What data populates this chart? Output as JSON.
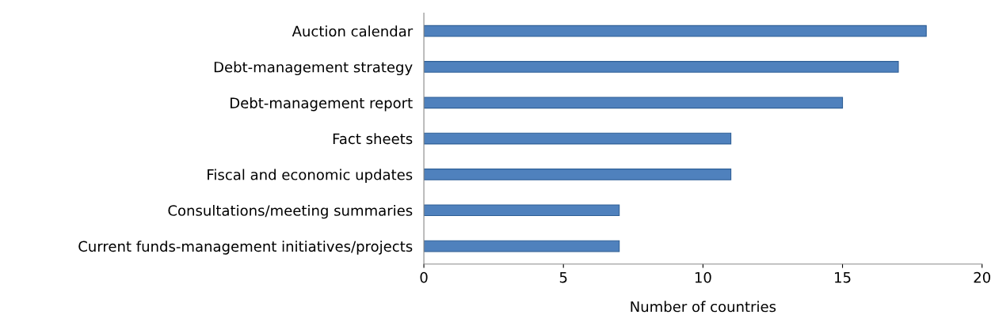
{
  "chart_data": {
    "type": "bar",
    "orientation": "horizontal",
    "xlabel": "Number of countries",
    "categories": [
      "Auction calendar",
      "Debt-management strategy",
      "Debt-management report",
      "Fact sheets",
      "Fiscal and economic updates",
      "Consultations/meeting summaries",
      "Current funds-management initiatives/projects"
    ],
    "values": [
      18,
      17,
      15,
      11,
      11,
      7,
      7
    ],
    "color": "#4f81bd",
    "xlim": [
      0,
      20
    ],
    "xticks": [
      0,
      5,
      10,
      15,
      20
    ],
    "grid": false,
    "legend": false
  }
}
